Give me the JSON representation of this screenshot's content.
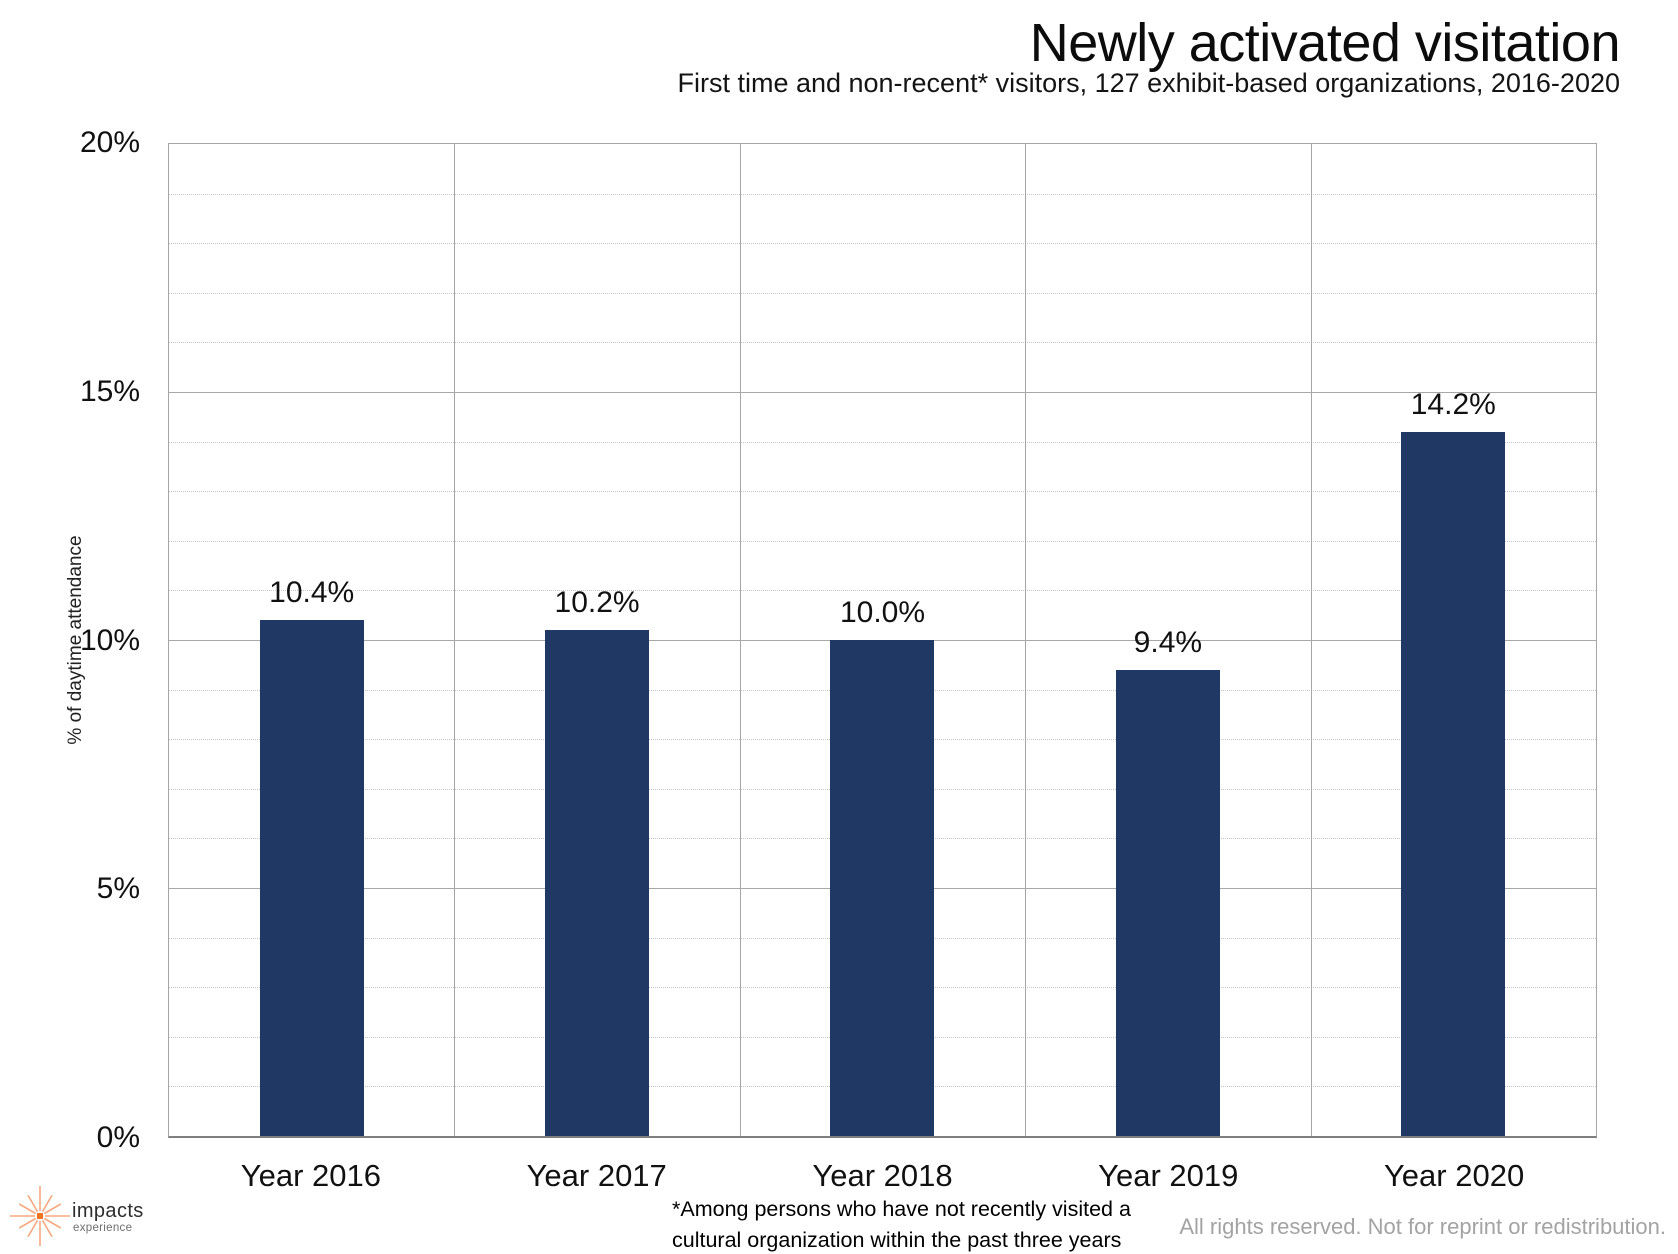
{
  "header": {
    "title": "Newly activated visitation",
    "subtitle": "First time and non-recent* visitors, 127 exhibit-based organizations, 2016-2020"
  },
  "chart_data": {
    "type": "bar",
    "categories": [
      "Year 2016",
      "Year 2017",
      "Year 2018",
      "Year 2019",
      "Year 2020"
    ],
    "values": [
      10.4,
      10.2,
      10.0,
      9.4,
      14.2
    ],
    "value_labels": [
      "10.4%",
      "10.2%",
      "10.0%",
      "9.4%",
      "14.2%"
    ],
    "title": "Newly activated visitation",
    "xlabel": "",
    "ylabel": "% of daytime attendance",
    "ylim": [
      0,
      20
    ],
    "ytick_labels": [
      "0%",
      "5%",
      "10%",
      "15%",
      "20%"
    ],
    "ytick_values": [
      0,
      5,
      10,
      15,
      20
    ],
    "minor_grid_step": 1,
    "grid": "major-solid-minor-dotted",
    "legend_position": "none",
    "bar_color": "#1F3864"
  },
  "footer": {
    "footnote_line1": "*Among persons who have not recently visited a",
    "footnote_line2": "cultural organization within the past three years",
    "rights": "All rights reserved. Not for reprint or redistribution.",
    "logo": {
      "name": "impacts",
      "sub": "experience",
      "ray_color": "#F6A97E",
      "center_color": "#EE7623"
    }
  }
}
